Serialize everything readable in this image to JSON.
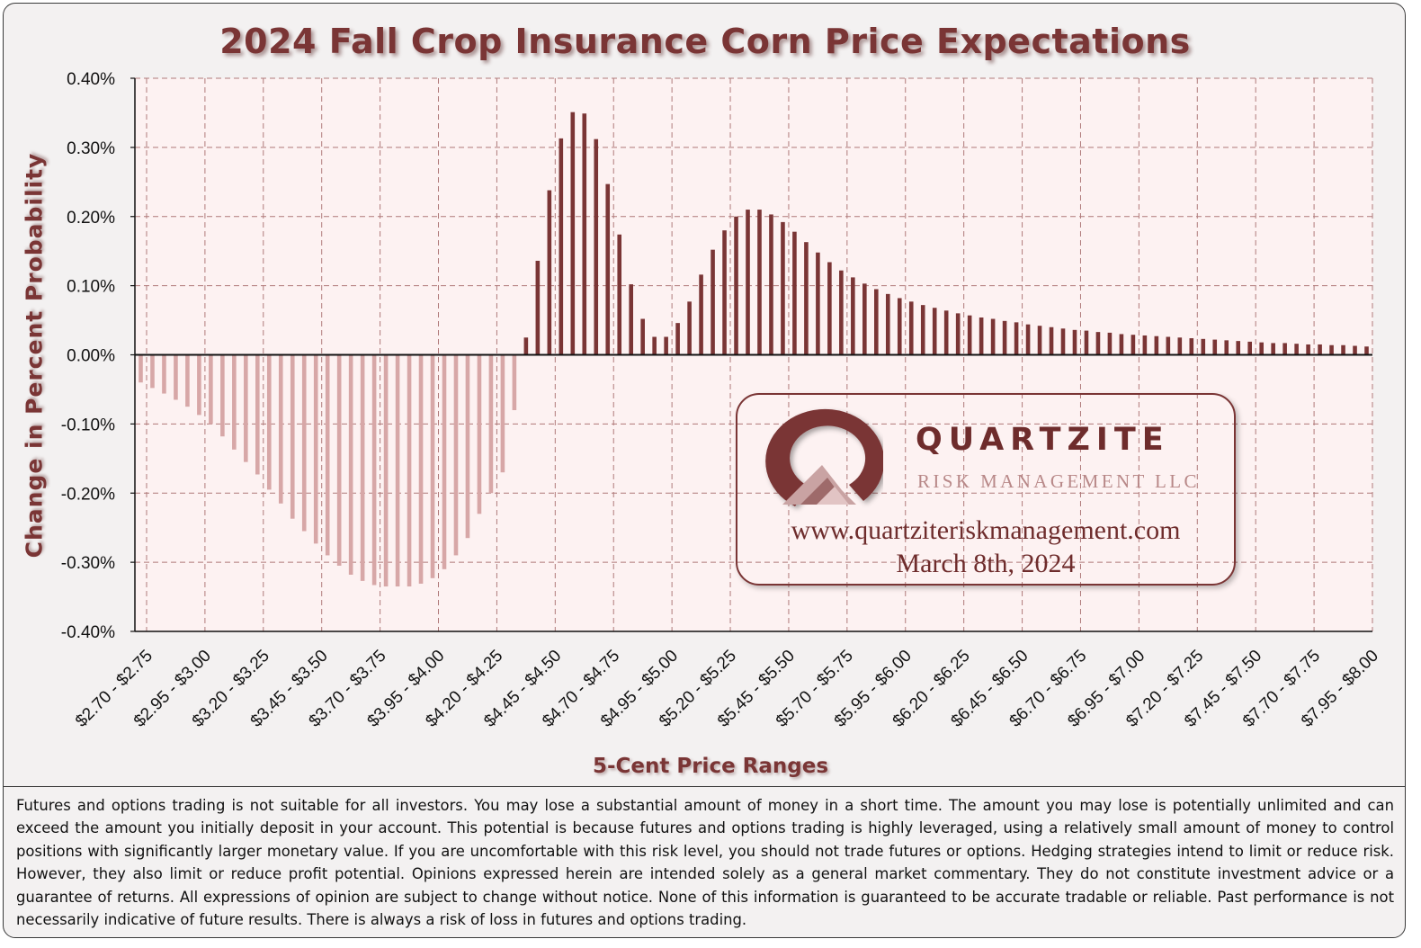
{
  "chart_data": {
    "type": "bar",
    "title": "2024 Fall Crop Insurance Corn Price Expectations",
    "xlabel": "5-Cent Price Ranges",
    "ylabel": "Change in Percent  Probability",
    "ylim": [
      -0.4,
      0.4
    ],
    "yticks": [
      "0.40%",
      "0.30%",
      "0.20%",
      "0.10%",
      "0.00%",
      "-0.10%",
      "-0.20%",
      "-0.30%",
      "-0.40%"
    ],
    "grid": true,
    "categories": [
      "$2.70 - $2.75",
      "$2.75 - $2.80",
      "$2.80 - $2.85",
      "$2.85 - $2.90",
      "$2.90 - $2.95",
      "$2.95 - $3.00",
      "$3.00 - $3.05",
      "$3.05 - $3.10",
      "$3.10 - $3.15",
      "$3.15 - $3.20",
      "$3.20 - $3.25",
      "$3.25 - $3.30",
      "$3.30 - $3.35",
      "$3.35 - $3.40",
      "$3.40 - $3.45",
      "$3.45 - $3.50",
      "$3.50 - $3.55",
      "$3.55 - $3.60",
      "$3.60 - $3.65",
      "$3.65 - $3.70",
      "$3.70 - $3.75",
      "$3.75 - $3.80",
      "$3.80 - $3.85",
      "$3.85 - $3.90",
      "$3.90 - $3.95",
      "$3.95 - $4.00",
      "$4.00 - $4.05",
      "$4.05 - $4.10",
      "$4.10 - $4.15",
      "$4.15 - $4.20",
      "$4.20 - $4.25",
      "$4.25 - $4.30",
      "$4.30 - $4.35",
      "$4.35 - $4.40",
      "$4.40 - $4.45",
      "$4.45 - $4.50",
      "$4.50 - $4.55",
      "$4.55 - $4.60",
      "$4.60 - $4.65",
      "$4.65 - $4.70",
      "$4.70 - $4.75",
      "$4.75 - $4.80",
      "$4.80 - $4.85",
      "$4.85 - $4.90",
      "$4.90 - $4.95",
      "$4.95 - $5.00",
      "$5.00 - $5.05",
      "$5.05 - $5.10",
      "$5.10 - $5.15",
      "$5.15 - $5.20",
      "$5.20 - $5.25",
      "$5.25 - $5.30",
      "$5.30 - $5.35",
      "$5.35 - $5.40",
      "$5.40 - $5.45",
      "$5.45 - $5.50",
      "$5.50 - $5.55",
      "$5.55 - $5.60",
      "$5.60 - $5.65",
      "$5.65 - $5.70",
      "$5.70 - $5.75",
      "$5.75 - $5.80",
      "$5.80 - $5.85",
      "$5.85 - $5.90",
      "$5.90 - $5.95",
      "$5.95 - $6.00",
      "$6.00 - $6.05",
      "$6.05 - $6.10",
      "$6.10 - $6.15",
      "$6.15 - $6.20",
      "$6.20 - $6.25",
      "$6.25 - $6.30",
      "$6.30 - $6.35",
      "$6.35 - $6.40",
      "$6.40 - $6.45",
      "$6.45 - $6.50",
      "$6.50 - $6.55",
      "$6.55 - $6.60",
      "$6.60 - $6.65",
      "$6.65 - $6.70",
      "$6.70 - $6.75",
      "$6.75 - $6.80",
      "$6.80 - $6.85",
      "$6.85 - $6.90",
      "$6.90 - $6.95",
      "$6.95 - $7.00",
      "$7.00 - $7.05",
      "$7.05 - $7.10",
      "$7.10 - $7.15",
      "$7.15 - $7.20",
      "$7.20 - $7.25",
      "$7.25 - $7.30",
      "$7.30 - $7.35",
      "$7.35 - $7.40",
      "$7.40 - $7.45",
      "$7.45 - $7.50",
      "$7.50 - $7.55",
      "$7.55 - $7.60",
      "$7.60 - $7.65",
      "$7.65 - $7.70",
      "$7.70 - $7.75",
      "$7.75 - $7.80",
      "$7.80 - $7.85",
      "$7.85 - $7.90",
      "$7.90 - $7.95",
      "$7.95 - $8.00"
    ],
    "xtick_labels": [
      "$2.70 - $2.75",
      "$2.95 - $3.00",
      "$3.20 - $3.25",
      "$3.45 - $3.50",
      "$3.70 - $3.75",
      "$3.95 - $4.00",
      "$4.20 - $4.25",
      "$4.45 - $4.50",
      "$4.70 - $4.75",
      "$4.95 - $5.00",
      "$5.20 - $5.25",
      "$5.45 - $5.50",
      "$5.70 - $5.75",
      "$5.95 - $6.00",
      "$6.20 - $6.25",
      "$6.45 - $6.50",
      "$6.70 - $6.75",
      "$6.95 - $7.00",
      "$7.20 - $7.25",
      "$7.45 - $7.50",
      "$7.70 - $7.75",
      "$7.95 - $8.00"
    ],
    "values": [
      -0.04,
      -0.048,
      -0.056,
      -0.065,
      -0.075,
      -0.087,
      -0.1,
      -0.118,
      -0.137,
      -0.155,
      -0.173,
      -0.195,
      -0.215,
      -0.237,
      -0.255,
      -0.273,
      -0.29,
      -0.305,
      -0.318,
      -0.327,
      -0.333,
      -0.335,
      -0.335,
      -0.335,
      -0.331,
      -0.323,
      -0.31,
      -0.29,
      -0.265,
      -0.23,
      -0.2,
      -0.17,
      -0.08,
      0.025,
      0.136,
      0.238,
      0.313,
      0.351,
      0.349,
      0.312,
      0.247,
      0.174,
      0.102,
      0.052,
      0.026,
      0.026,
      0.046,
      0.077,
      0.116,
      0.152,
      0.18,
      0.2,
      0.21,
      0.21,
      0.203,
      0.192,
      0.178,
      0.163,
      0.148,
      0.134,
      0.122,
      0.112,
      0.103,
      0.095,
      0.088,
      0.082,
      0.077,
      0.072,
      0.068,
      0.064,
      0.06,
      0.057,
      0.054,
      0.052,
      0.049,
      0.047,
      0.044,
      0.042,
      0.04,
      0.038,
      0.036,
      0.035,
      0.033,
      0.032,
      0.03,
      0.029,
      0.028,
      0.027,
      0.026,
      0.025,
      0.024,
      0.023,
      0.022,
      0.021,
      0.02,
      0.019,
      0.018,
      0.017,
      0.017,
      0.016,
      0.015,
      0.015,
      0.014,
      0.014,
      0.013,
      0.012
    ],
    "colors": {
      "positive": "#7a3535",
      "negative": "#d7a7a7",
      "plot_bg": "#fdf2f2",
      "grid": "#b07a7a"
    }
  },
  "logo": {
    "name": "QUARTZITE",
    "subtitle": "RISK MANAGEMENT LLC",
    "url": "www.quartziteriskmanagement.com",
    "date": "March 8th, 2024"
  },
  "disclaimer": "Futures and options trading is not suitable for all investors. You may lose a substantial amount of money in a short time. The amount you may lose is potentially unlimited and can exceed the amount you initially deposit in your account. This potential is because futures and options trading is highly leveraged, using a relatively small amount of money to control positions with significantly larger monetary value. If you are uncomfortable with this risk level, you should not trade futures or options. Hedging strategies intend to limit or reduce risk. However, they also limit or reduce profit potential. Opinions expressed herein are intended solely as a general market commentary. They do not constitute investment advice or a guarantee of returns. All expressions of opinion are subject to change without notice. None of this information is guaranteed to be accurate tradable or reliable. Past performance is not necessarily indicative of future results. There is always a risk of loss in futures and options trading."
}
